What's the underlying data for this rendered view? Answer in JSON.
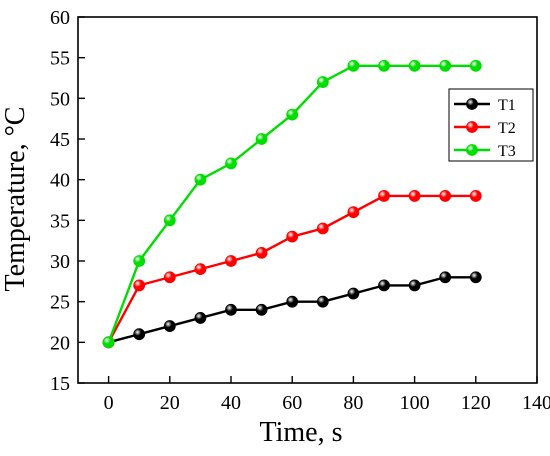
{
  "chart_data": {
    "type": "line",
    "title": "",
    "xlabel": "Time, s",
    "ylabel": "Temperature, °C",
    "xlim": [
      -10,
      140
    ],
    "ylim": [
      15,
      60
    ],
    "xticks": [
      0,
      20,
      40,
      60,
      80,
      100,
      120,
      140
    ],
    "yticks": [
      15,
      20,
      25,
      30,
      35,
      40,
      45,
      50,
      55,
      60
    ],
    "grid": false,
    "legend_position": "right",
    "x": [
      0,
      10,
      20,
      30,
      40,
      50,
      60,
      70,
      80,
      90,
      100,
      110,
      120
    ],
    "series": [
      {
        "name": "T1",
        "color": "#000000",
        "marker": "sphere",
        "values": [
          20,
          21,
          22,
          23,
          24,
          24,
          25,
          25,
          26,
          27,
          27,
          28,
          28
        ]
      },
      {
        "name": "T2",
        "color": "#ff0000",
        "marker": "sphere",
        "values": [
          20,
          27,
          28,
          29,
          30,
          31,
          33,
          34,
          36,
          38,
          38,
          38,
          38
        ]
      },
      {
        "name": "T3",
        "color": "#00dd00",
        "marker": "sphere",
        "values": [
          20,
          30,
          35,
          40,
          42,
          45,
          48,
          52,
          54,
          54,
          54,
          54,
          54
        ]
      }
    ]
  }
}
